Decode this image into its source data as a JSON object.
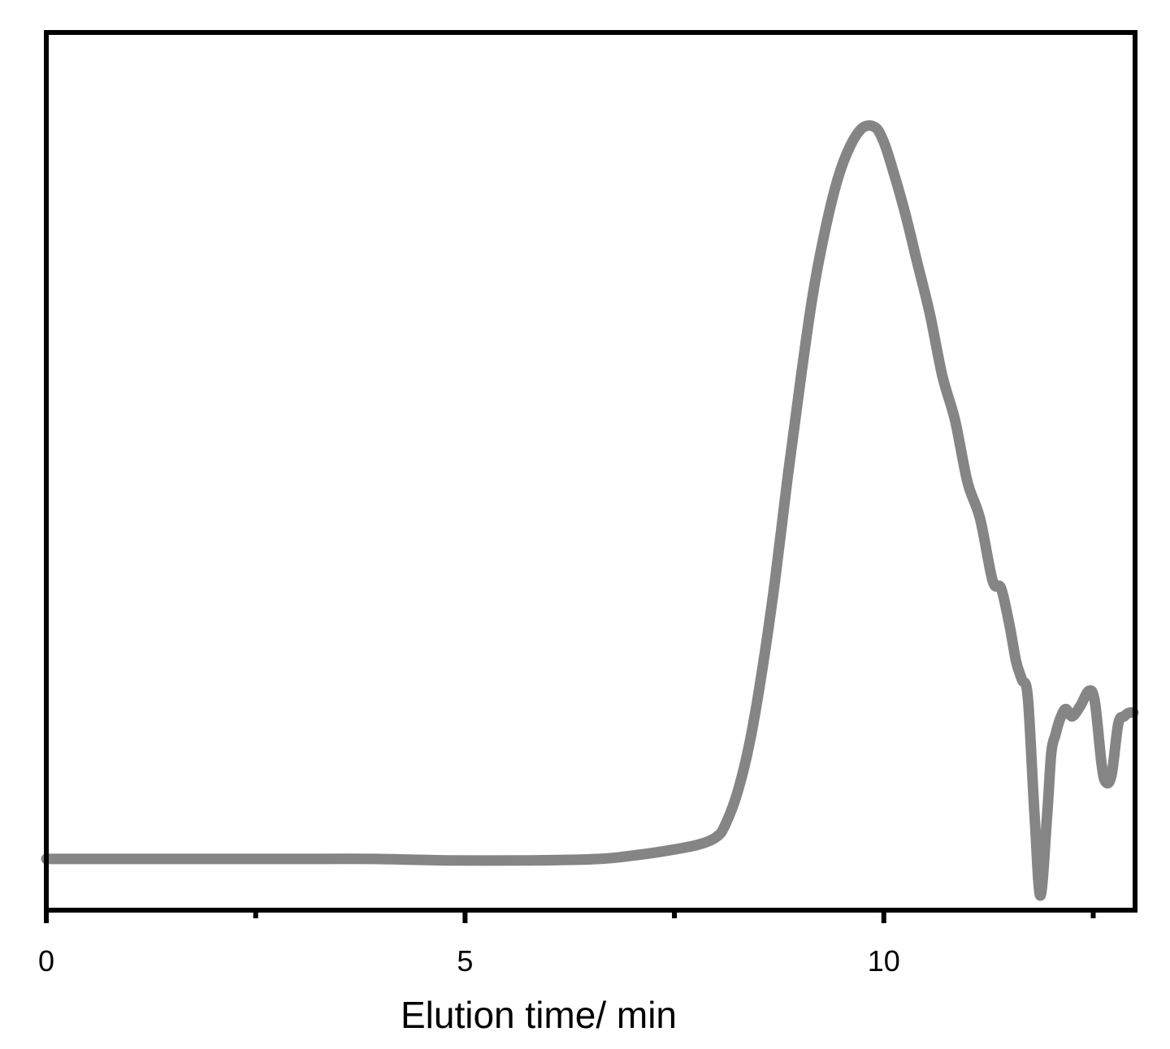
{
  "chart_data": {
    "type": "line",
    "title": "",
    "xlabel": "Elution time/ min",
    "ylabel": "",
    "xlim": [
      0,
      13.0
    ],
    "ylim": [
      -0.07,
      1.13
    ],
    "x_major_ticks": [
      0,
      5,
      10
    ],
    "x_minor_ticks": [
      2.5,
      7.5,
      12.5
    ],
    "x_tick_labels": [
      "0",
      "5",
      "10"
    ],
    "y_ticks_visible": false,
    "grid": false,
    "legend": "none",
    "line_color": "#858585",
    "axis_color": "#000000",
    "series": [
      {
        "x": [
          0,
          1,
          2,
          3,
          3.9,
          4.8,
          5.8,
          6.6,
          7.1,
          7.5,
          7.8,
          8.0,
          8.1,
          8.25,
          8.4,
          8.55,
          8.7,
          8.85,
          9.0,
          9.15,
          9.3,
          9.45,
          9.6,
          9.75,
          9.9,
          10.0,
          10.1,
          10.25,
          10.4,
          10.55,
          10.7,
          10.85,
          11.0,
          11.15,
          11.3,
          11.4,
          11.5,
          11.58,
          11.65,
          11.72,
          11.8,
          11.87,
          11.95,
          12.0,
          12.05,
          12.1,
          12.17,
          12.25,
          12.35,
          12.45,
          12.52,
          12.6,
          12.65,
          12.72,
          12.8,
          12.87,
          12.93,
          12.98
        ],
        "y": [
          0.0,
          0.0,
          0.0,
          0.0,
          0.0,
          -0.002,
          -0.002,
          0.0,
          0.006,
          0.013,
          0.02,
          0.03,
          0.045,
          0.09,
          0.16,
          0.26,
          0.38,
          0.52,
          0.65,
          0.77,
          0.86,
          0.93,
          0.975,
          1.0,
          1.0,
          0.98,
          0.945,
          0.885,
          0.815,
          0.745,
          0.66,
          0.6,
          0.515,
          0.465,
          0.38,
          0.37,
          0.32,
          0.27,
          0.245,
          0.22,
          0.06,
          -0.05,
          0.06,
          0.145,
          0.17,
          0.19,
          0.205,
          0.195,
          0.21,
          0.23,
          0.215,
          0.13,
          0.105,
          0.115,
          0.185,
          0.195,
          0.2,
          0.2
        ]
      }
    ]
  }
}
